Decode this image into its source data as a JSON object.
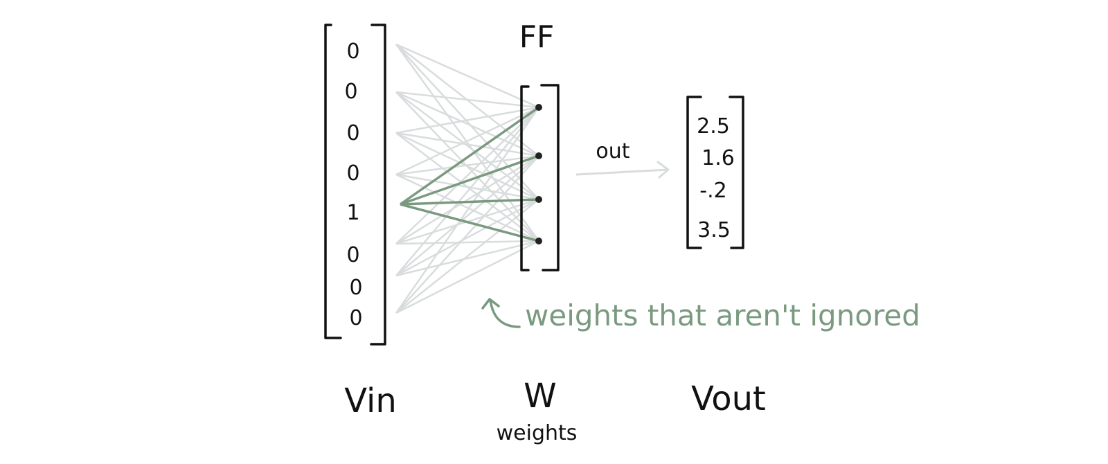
{
  "title": "FF",
  "vin": {
    "label": "Vin",
    "values": [
      "0",
      "0",
      "0",
      "0",
      "1",
      "0",
      "0",
      "0"
    ]
  },
  "weights": {
    "label": "W",
    "sublabel": "weights",
    "node_count": 4
  },
  "arrow_label": "out",
  "vout": {
    "label": "Vout",
    "values": [
      "2.5",
      "1.6",
      "-.2",
      "3.5"
    ]
  },
  "annotation": "weights that aren't ignored",
  "colors": {
    "ink": "#111111",
    "ignored_connection": "#d9dcdd",
    "active_connection": "#7a9a80"
  }
}
